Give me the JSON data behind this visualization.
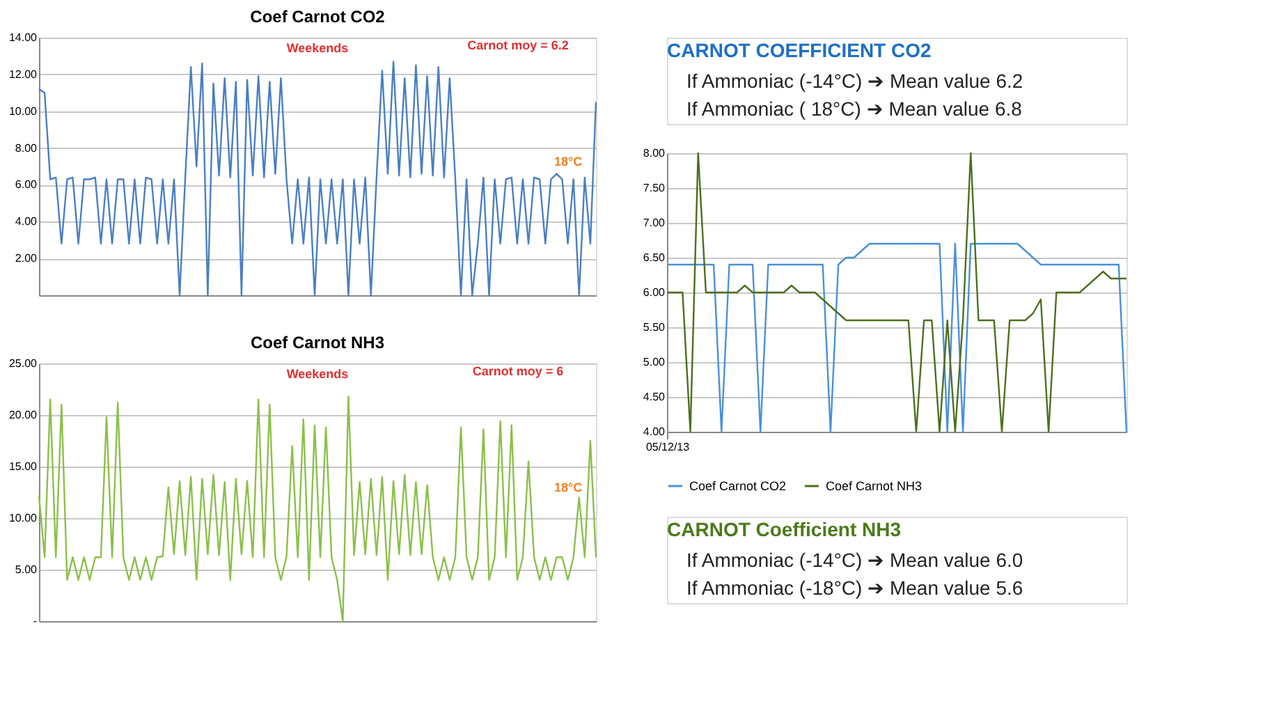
{
  "chart_data": [
    {
      "type": "line",
      "title": "Coef Carnot CO2",
      "grid": "y",
      "ylim": [
        0,
        14
      ],
      "yticks": [
        {
          "value": 2,
          "label": "2.00"
        },
        {
          "value": 4,
          "label": "4.00"
        },
        {
          "value": 6,
          "label": "6.00"
        },
        {
          "value": 8,
          "label": "8.00"
        },
        {
          "value": 10,
          "label": "10.00"
        },
        {
          "value": 12,
          "label": "12.00"
        },
        {
          "value": 14,
          "label": "14.00"
        }
      ],
      "annotations": [
        "Weekends",
        "Carnot moy = 6.2",
        "18°C"
      ],
      "categories": [
        null,
        null,
        null,
        null,
        null,
        null,
        null,
        null,
        null,
        null,
        null,
        null,
        null,
        null,
        null,
        null,
        null,
        null,
        null,
        null,
        null,
        null,
        null,
        null,
        null,
        null,
        null,
        null,
        null,
        null,
        null,
        null,
        null,
        null,
        null,
        null,
        null,
        null,
        null,
        null,
        null,
        null,
        null,
        null,
        null,
        null,
        null,
        null,
        null,
        null,
        null,
        null,
        null,
        null,
        null,
        null,
        null,
        null,
        null,
        null,
        null,
        null,
        null,
        null,
        null,
        null,
        null,
        null,
        null,
        null,
        null,
        null,
        null,
        null,
        null,
        null,
        null,
        null,
        null,
        null,
        null,
        null,
        null,
        null,
        null,
        null,
        null,
        null,
        null,
        null,
        null,
        null,
        null,
        null,
        null,
        null,
        null,
        null,
        null,
        null
      ],
      "series": [
        {
          "color": "#4a7fc1",
          "values": [
            11.2,
            11.0,
            6.3,
            6.4,
            2.8,
            6.3,
            6.4,
            2.8,
            6.3,
            6.3,
            6.4,
            2.8,
            6.3,
            2.8,
            6.3,
            6.3,
            2.8,
            6.3,
            2.8,
            6.4,
            6.3,
            2.8,
            6.3,
            2.8,
            6.3,
            0.0,
            6.4,
            12.4,
            7.0,
            12.6,
            0.0,
            11.5,
            6.5,
            11.8,
            6.4,
            11.6,
            0.0,
            11.7,
            6.5,
            11.9,
            6.4,
            11.6,
            6.6,
            11.8,
            6.3,
            2.8,
            6.3,
            2.8,
            6.4,
            0.0,
            6.3,
            2.8,
            6.3,
            2.8,
            6.3,
            0.0,
            6.3,
            2.8,
            6.4,
            0.0,
            6.4,
            12.2,
            6.6,
            12.7,
            6.5,
            11.8,
            6.4,
            12.5,
            6.6,
            11.9,
            6.5,
            12.4,
            6.4,
            11.8,
            6.3,
            0.0,
            6.3,
            0.0,
            2.8,
            6.4,
            0.0,
            6.3,
            2.8,
            6.3,
            6.4,
            2.8,
            6.3,
            2.8,
            6.4,
            6.3,
            2.8,
            6.3,
            6.6,
            6.3,
            2.8,
            6.3,
            0.0,
            6.4,
            2.8,
            10.5
          ]
        }
      ]
    },
    {
      "type": "line",
      "title": "Coef Carnot NH3",
      "grid": "y",
      "ylim": [
        0,
        25
      ],
      "yticks": [
        {
          "value": 0,
          "label": "-"
        },
        {
          "value": 5,
          "label": "5.00"
        },
        {
          "value": 10,
          "label": "10.00"
        },
        {
          "value": 15,
          "label": "15.00"
        },
        {
          "value": 20,
          "label": "20.00"
        },
        {
          "value": 25,
          "label": "25.00"
        }
      ],
      "annotations": [
        "Weekends",
        "Carnot moy = 6",
        "18°C"
      ],
      "categories": [
        null,
        null,
        null,
        null,
        null,
        null,
        null,
        null,
        null,
        null,
        null,
        null,
        null,
        null,
        null,
        null,
        null,
        null,
        null,
        null,
        null,
        null,
        null,
        null,
        null,
        null,
        null,
        null,
        null,
        null,
        null,
        null,
        null,
        null,
        null,
        null,
        null,
        null,
        null,
        null,
        null,
        null,
        null,
        null,
        null,
        null,
        null,
        null,
        null,
        null,
        null,
        null,
        null,
        null,
        null,
        null,
        null,
        null,
        null,
        null,
        null,
        null,
        null,
        null,
        null,
        null,
        null,
        null,
        null,
        null,
        null,
        null,
        null,
        null,
        null,
        null,
        null,
        null,
        null,
        null,
        null,
        null,
        null,
        null,
        null,
        null,
        null,
        null,
        null,
        null,
        null,
        null,
        null,
        null,
        null,
        null,
        null,
        null,
        null,
        null
      ],
      "series": [
        {
          "color": "#8cbf4a",
          "values": [
            12.2,
            6.2,
            21.5,
            6.2,
            21.0,
            4.0,
            6.2,
            4.0,
            6.2,
            4.0,
            6.2,
            6.2,
            19.8,
            6.2,
            21.2,
            6.2,
            4.0,
            6.2,
            4.0,
            6.2,
            4.0,
            6.2,
            6.3,
            13.0,
            6.5,
            13.6,
            6.4,
            14.0,
            4.0,
            13.8,
            6.5,
            14.2,
            6.4,
            13.5,
            4.0,
            13.8,
            6.5,
            13.6,
            6.2,
            21.5,
            6.2,
            21.0,
            6.2,
            4.0,
            6.3,
            17.0,
            6.2,
            19.6,
            4.0,
            19.0,
            6.2,
            18.8,
            6.2,
            4.0,
            0.0,
            21.8,
            6.4,
            13.5,
            6.5,
            13.8,
            6.4,
            14.0,
            4.0,
            13.6,
            6.5,
            14.2,
            6.4,
            13.5,
            6.5,
            13.2,
            6.2,
            4.0,
            6.2,
            4.0,
            6.2,
            18.8,
            6.2,
            4.0,
            6.2,
            18.6,
            4.0,
            6.2,
            19.4,
            6.2,
            19.0,
            4.0,
            6.2,
            15.5,
            6.2,
            4.0,
            6.2,
            4.0,
            6.2,
            6.2,
            4.0,
            6.2,
            12.0,
            6.2,
            17.5,
            6.2
          ]
        }
      ]
    },
    {
      "type": "line",
      "grid": "y",
      "legend": "bottom",
      "ylim": [
        4,
        8
      ],
      "yticks": [
        {
          "value": 4,
          "label": "4.00"
        },
        {
          "value": 4.5,
          "label": "4.50"
        },
        {
          "value": 5,
          "label": "5.00"
        },
        {
          "value": 5.5,
          "label": "5.50"
        },
        {
          "value": 6,
          "label": "6.00"
        },
        {
          "value": 6.5,
          "label": "6.50"
        },
        {
          "value": 7,
          "label": "7.00"
        },
        {
          "value": 7.5,
          "label": "7.50"
        },
        {
          "value": 8,
          "label": "8.00"
        }
      ],
      "categories": [
        "05/12/13",
        null,
        null,
        null,
        null,
        null,
        null,
        null,
        null,
        null,
        null,
        null,
        null,
        null,
        null,
        null,
        null,
        null,
        null,
        null,
        null,
        null,
        null,
        null,
        null,
        null,
        null,
        null,
        null,
        null,
        null,
        null,
        null,
        null,
        null,
        null,
        null,
        null,
        null,
        null,
        null,
        null,
        null,
        null,
        null,
        null,
        null,
        null,
        null,
        null,
        null,
        null,
        null,
        null,
        null,
        null,
        null,
        null,
        null,
        null
      ],
      "series": [
        {
          "name": "Coef Carnot CO2",
          "color": "#4a90d9",
          "values": [
            6.4,
            6.4,
            6.4,
            6.4,
            6.4,
            6.4,
            6.4,
            4.0,
            6.4,
            6.4,
            6.4,
            6.4,
            4.0,
            6.4,
            6.4,
            6.4,
            6.4,
            6.4,
            6.4,
            6.4,
            6.4,
            4.0,
            6.4,
            6.5,
            6.5,
            6.6,
            6.7,
            6.7,
            6.7,
            6.7,
            6.7,
            6.7,
            6.7,
            6.7,
            6.7,
            6.7,
            4.0,
            6.7,
            4.0,
            6.7,
            6.7,
            6.7,
            6.7,
            6.7,
            6.7,
            6.7,
            6.6,
            6.5,
            6.4,
            6.4,
            6.4,
            6.4,
            6.4,
            6.4,
            6.4,
            6.4,
            6.4,
            6.4,
            6.4,
            4.0
          ]
        },
        {
          "name": "Coef Carnot NH3",
          "color": "#4e6e1e",
          "values": [
            6.0,
            6.0,
            6.0,
            4.0,
            8.0,
            6.0,
            6.0,
            6.0,
            6.0,
            6.0,
            6.1,
            6.0,
            6.0,
            6.0,
            6.0,
            6.0,
            6.1,
            6.0,
            6.0,
            6.0,
            5.9,
            5.8,
            5.7,
            5.6,
            5.6,
            5.6,
            5.6,
            5.6,
            5.6,
            5.6,
            5.6,
            5.6,
            4.0,
            5.6,
            5.6,
            4.0,
            5.6,
            4.0,
            5.6,
            8.0,
            5.6,
            5.6,
            5.6,
            4.0,
            5.6,
            5.6,
            5.6,
            5.7,
            5.9,
            4.0,
            6.0,
            6.0,
            6.0,
            6.0,
            6.1,
            6.2,
            6.3,
            6.2,
            6.2,
            6.2
          ]
        }
      ]
    },
    {
      "type": "other",
      "title": "CARNOT COEFFICIENT CO2",
      "annotations": [
        "If Ammoniac (-14°C) ➔ Mean value 6.2",
        "If Ammoniac ( 18°C) ➔ Mean value 6.8"
      ]
    },
    {
      "type": "other",
      "title": "CARNOT Coefficient NH3",
      "annotations": [
        "If Ammoniac (-14°C) ➔ Mean value 6.0",
        "If Ammoniac (-18°C) ➔ Mean value 5.6"
      ]
    }
  ]
}
